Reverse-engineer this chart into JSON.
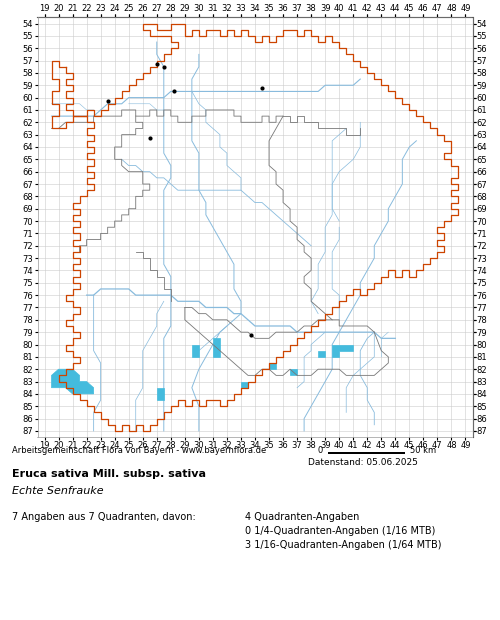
{
  "title_line1": "Eruca sativa Mill. subsp. sativa",
  "title_line2": "Echte Senfrauke",
  "attribution": "Arbeitsgemeinschaft Flora von Bayern - www.bayernflora.de",
  "date_text": "Datenstand: 05.06.2025",
  "stats_line1": "7 Angaben aus 7 Quadranten, davon:",
  "stats_col2_line1": "4 Quadranten-Angaben",
  "stats_col2_line2": "0 1/4-Quadranten-Angaben (1/16 MTB)",
  "stats_col2_line3": "3 1/16-Quadranten-Angaben (1/64 MTB)",
  "x_ticks": [
    19,
    20,
    21,
    22,
    23,
    24,
    25,
    26,
    27,
    28,
    29,
    30,
    31,
    32,
    33,
    34,
    35,
    36,
    37,
    38,
    39,
    40,
    41,
    42,
    43,
    44,
    45,
    46,
    47,
    48,
    49
  ],
  "y_ticks": [
    54,
    55,
    56,
    57,
    58,
    59,
    60,
    61,
    62,
    63,
    64,
    65,
    66,
    67,
    68,
    69,
    70,
    71,
    72,
    73,
    74,
    75,
    76,
    77,
    78,
    79,
    80,
    81,
    82,
    83,
    84,
    85,
    86,
    87
  ],
  "xmin": 19,
  "xmax": 49,
  "ymin": 54,
  "ymax": 87,
  "grid_color": "#cccccc",
  "bg_color": "#ffffff",
  "border_color_outer": "#cc4400",
  "border_color_inner": "#777777",
  "river_color": "#88bbdd",
  "lake_color": "#44bbdd",
  "dot_color": "#000000",
  "dot_size": 3,
  "observation_dots": [
    [
      27.0,
      57.25
    ],
    [
      27.5,
      57.5
    ],
    [
      28.25,
      59.5
    ],
    [
      23.5,
      60.25
    ],
    [
      26.5,
      63.25
    ],
    [
      34.5,
      59.25
    ],
    [
      33.75,
      79.25
    ]
  ],
  "font_size_ticks": 6,
  "font_size_attribution": 6,
  "font_size_title": 8,
  "font_size_stats": 7
}
